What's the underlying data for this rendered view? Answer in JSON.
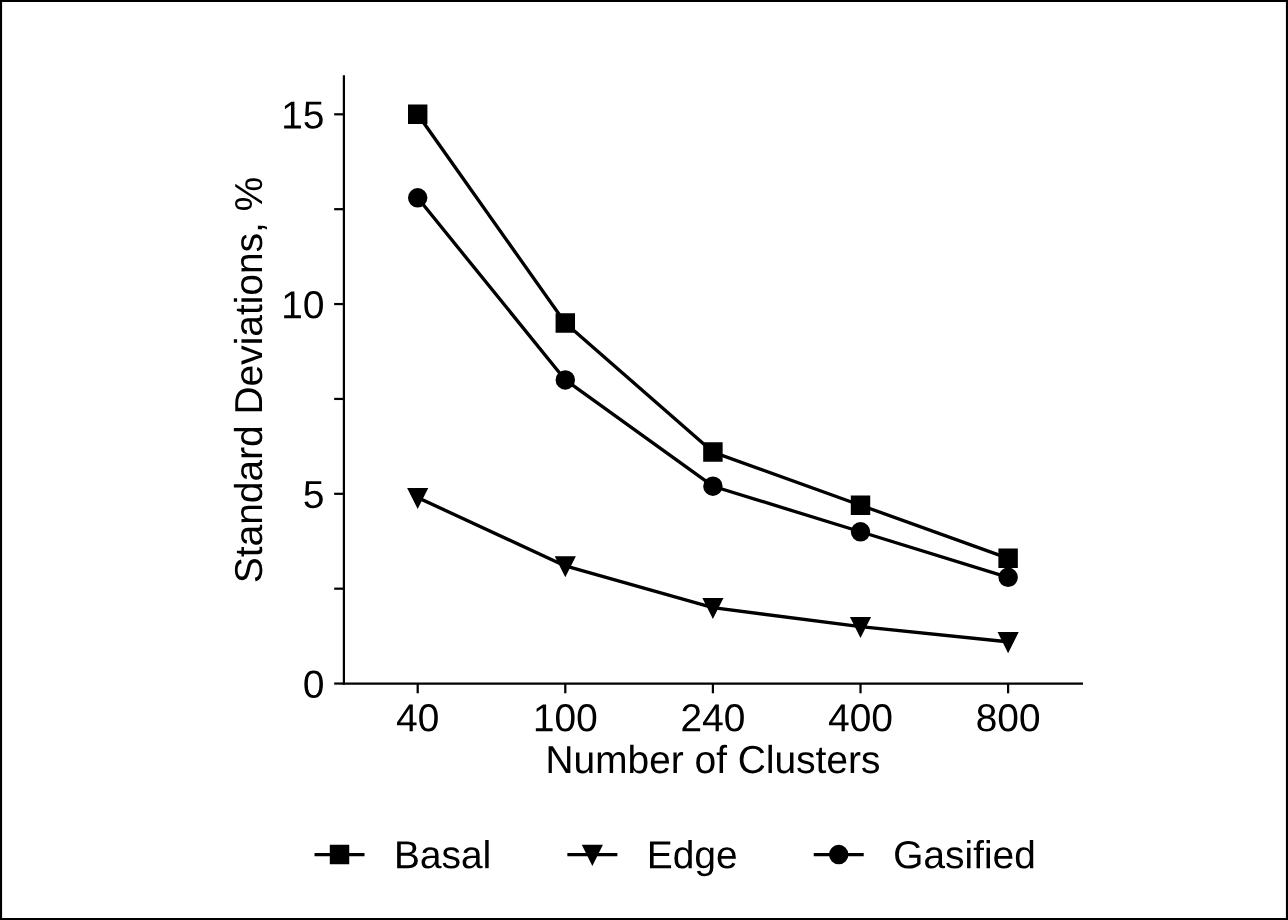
{
  "chart_data": {
    "type": "line",
    "xlabel": "Number of Clusters",
    "ylabel": "Standard Deviations, %",
    "categories": [
      "40",
      "100",
      "240",
      "400",
      "800"
    ],
    "series": [
      {
        "name": "Basal",
        "color": "#000000",
        "marker": "square",
        "values": [
          15,
          9.5,
          6.1,
          4.7,
          3.3
        ]
      },
      {
        "name": "Edge",
        "color": "#000000",
        "marker": "triangle",
        "values": [
          4.9,
          3.1,
          2.0,
          1.5,
          1.1
        ]
      },
      {
        "name": "Gasified",
        "color": "#000000",
        "marker": "circle",
        "values": [
          12.8,
          8.0,
          5.2,
          4.0,
          2.8
        ]
      }
    ],
    "ylim": [
      0,
      16
    ],
    "yticks": [
      0,
      {
        "value": 2.5,
        "label": null
      },
      5,
      {
        "value": 7.5,
        "label": null
      },
      10,
      {
        "value": 12.5,
        "label": null
      },
      15
    ],
    "grid": false,
    "legend": "bottom",
    "line_style": "solid"
  }
}
